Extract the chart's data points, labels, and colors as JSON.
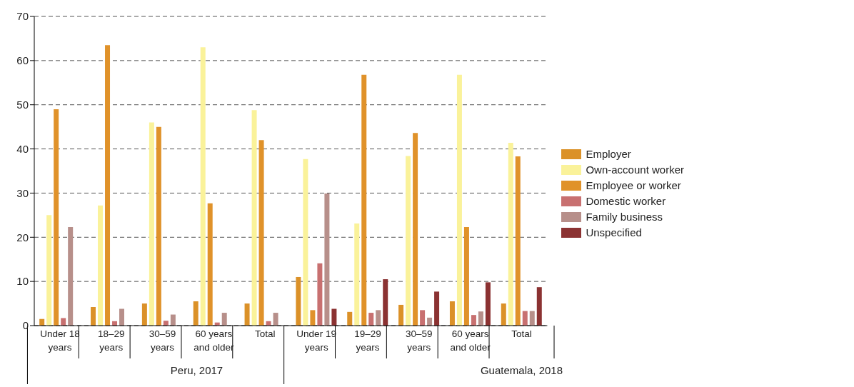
{
  "chart_data": {
    "type": "bar",
    "categories": [
      "Under 18 years",
      "18–29 years",
      "30–59 years",
      "60 years and older",
      "Total",
      "Under 19 years",
      "19–29 years",
      "30–59 years",
      "60 years and older",
      "Total"
    ],
    "series": [
      {
        "name": "Employer",
        "color": "#db9128",
        "values": [
          1.5,
          4.2,
          5,
          5.5,
          5,
          11,
          3.1,
          4.7,
          5.5,
          5
        ]
      },
      {
        "name": "Own-account worker",
        "color": "#faf29a",
        "values": [
          25,
          27.2,
          46,
          63,
          48.8,
          37.7,
          23.1,
          38.4,
          56.8,
          41.4
        ]
      },
      {
        "name": "Employee or worker",
        "color": "#e0922a",
        "values": [
          49,
          63.5,
          45,
          27.7,
          42,
          3.5,
          56.8,
          43.6,
          22.3,
          38.3
        ]
      },
      {
        "name": "Domestic worker",
        "color": "#c87070",
        "values": [
          1.7,
          1,
          1.1,
          0.7,
          1,
          14.1,
          2.9,
          3.5,
          2.4,
          3.3
        ]
      },
      {
        "name": "Family business",
        "color": "#b78f8a",
        "values": [
          22.3,
          3.8,
          2.5,
          2.9,
          2.9,
          29.9,
          3.5,
          1.8,
          3.2,
          3.3
        ]
      },
      {
        "name": "Unspecified",
        "color": "#8b3232",
        "values": [
          null,
          null,
          null,
          null,
          null,
          3.8,
          10.5,
          7.7,
          9.8,
          8.7
        ]
      }
    ],
    "annotations": [
      "Peru, 2017",
      "Guatemala, 2018"
    ],
    "ylim": [
      0,
      70
    ],
    "yticks": [
      0,
      10,
      20,
      30,
      40,
      50,
      60,
      70
    ],
    "grid": "y",
    "legend": "right"
  }
}
